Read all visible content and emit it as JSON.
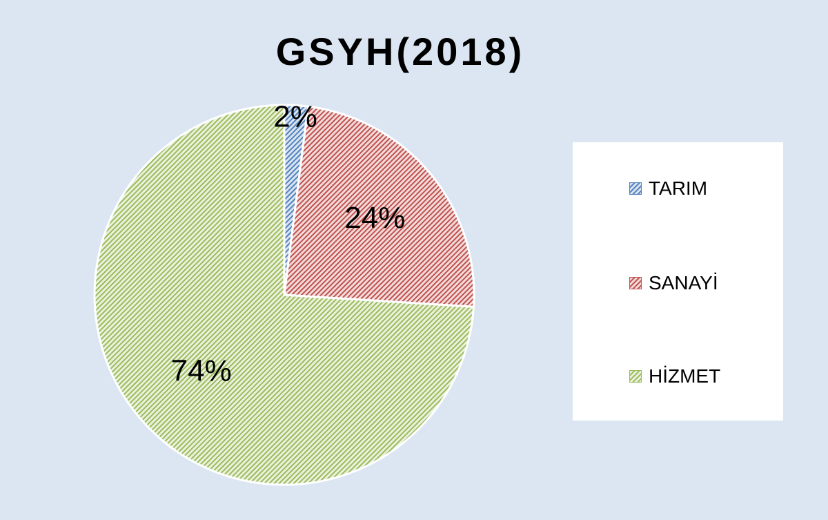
{
  "chart_data": {
    "type": "pie",
    "title": "GSYH(2018)",
    "categories": [
      "TARIM",
      "SANAYİ",
      "HİZMET"
    ],
    "values": [
      2,
      24,
      74
    ],
    "labels": [
      "2%",
      "24%",
      "74%"
    ],
    "colors": [
      "#4f81bd",
      "#c0504d",
      "#9bbb59"
    ],
    "fills": [
      "#dbe5f1",
      "#f2dcdb",
      "#ebf1de"
    ],
    "legend_position": "right"
  }
}
